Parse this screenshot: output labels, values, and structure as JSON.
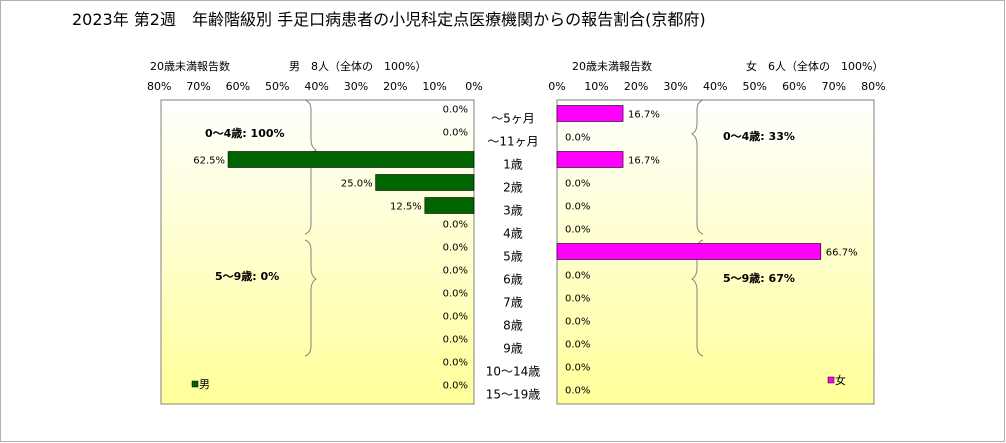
{
  "title": "2023年 第2週　年齢階級別 手足口病患者の小児科定点医療機関からの報告割合(京都府)",
  "colors": {
    "male": "#006400",
    "female": "#ff00ff",
    "bg_top": "#ffffff",
    "bg_bottom": "#ffff99"
  },
  "chart_data": [
    {
      "type": "bar",
      "orientation": "horizontal",
      "direction": "right-to-left",
      "caption_left": "20歳未満報告数",
      "caption_right": "男　8人（全体の　100%）",
      "sex_label": "男",
      "categories": [
        "～5ヶ月",
        "～11ヶ月",
        "1歳",
        "2歳",
        "3歳",
        "4歳",
        "5歳",
        "6歳",
        "7歳",
        "8歳",
        "9歳",
        "10～14歳",
        "15～19歳"
      ],
      "ticks": [
        "80%",
        "70%",
        "60%",
        "50%",
        "40%",
        "30%",
        "20%",
        "10%",
        "0%"
      ],
      "xlim": [
        0,
        80
      ],
      "values": [
        0.0,
        0.0,
        62.5,
        25.0,
        12.5,
        0.0,
        0.0,
        0.0,
        0.0,
        0.0,
        0.0,
        0.0,
        0.0
      ],
      "value_labels": [
        "0.0%",
        "0.0%",
        "62.5%",
        "25.0%",
        "12.5%",
        "0.0%",
        "0.0%",
        "0.0%",
        "0.0%",
        "0.0%",
        "0.0%",
        "0.0%",
        "0.0%"
      ],
      "annotations": [
        "0～4歳: 100%",
        "5～9歳: 0%"
      ],
      "legend": "男",
      "legend_position": "bottom-left",
      "grid": false
    },
    {
      "type": "bar",
      "orientation": "horizontal",
      "direction": "left-to-right",
      "caption_left": "20歳未満報告数",
      "caption_right": "女　6人（全体の　100%）",
      "sex_label": "女",
      "categories": [
        "～5ヶ月",
        "～11ヶ月",
        "1歳",
        "2歳",
        "3歳",
        "4歳",
        "5歳",
        "6歳",
        "7歳",
        "8歳",
        "9歳",
        "10～14歳",
        "15～19歳"
      ],
      "ticks": [
        "0%",
        "10%",
        "20%",
        "30%",
        "40%",
        "50%",
        "60%",
        "70%",
        "80%"
      ],
      "xlim": [
        0,
        80
      ],
      "values": [
        16.7,
        0.0,
        16.7,
        0.0,
        0.0,
        0.0,
        66.7,
        0.0,
        0.0,
        0.0,
        0.0,
        0.0,
        0.0
      ],
      "value_labels": [
        "16.7%",
        "0.0%",
        "16.7%",
        "0.0%",
        "0.0%",
        "0.0%",
        "66.7%",
        "0.0%",
        "0.0%",
        "0.0%",
        "0.0%",
        "0.0%",
        "0.0%"
      ],
      "annotations": [
        "0～4歳: 33%",
        "5～9歳: 67%"
      ],
      "legend": "女",
      "legend_position": "bottom-right",
      "grid": false
    }
  ]
}
